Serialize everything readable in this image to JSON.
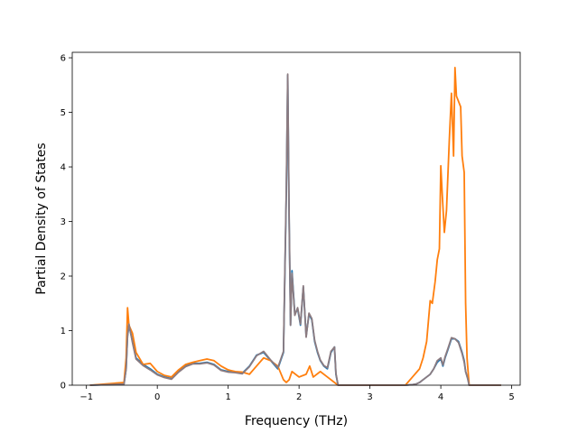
{
  "chart_data": {
    "type": "line",
    "title": "",
    "xlabel": "Frequency (THz)",
    "ylabel": "Partial Density of States",
    "xlim": [
      -1.2,
      5.12
    ],
    "ylim": [
      0,
      6.1
    ],
    "xticks": [
      -1,
      0,
      1,
      2,
      3,
      4,
      5
    ],
    "yticks": [
      0,
      1,
      2,
      3,
      4,
      5,
      6
    ],
    "grid": false,
    "legend": "none",
    "series": [
      {
        "color": "#1f77b4",
        "x": [
          -0.95,
          -0.47,
          -0.44,
          -0.42,
          -0.4,
          -0.35,
          -0.3,
          -0.2,
          -0.1,
          0.0,
          0.1,
          0.2,
          0.3,
          0.4,
          0.5,
          0.6,
          0.7,
          0.8,
          0.9,
          1.0,
          1.1,
          1.2,
          1.3,
          1.4,
          1.5,
          1.6,
          1.7,
          1.78,
          1.82,
          1.84,
          1.86,
          1.88,
          1.9,
          1.94,
          1.98,
          2.02,
          2.06,
          2.1,
          2.14,
          2.18,
          2.22,
          2.26,
          2.3,
          2.35,
          2.4,
          2.45,
          2.5,
          2.52,
          2.55,
          3.0,
          3.5,
          3.6,
          3.65,
          3.7,
          3.75,
          3.8,
          3.85,
          3.9,
          3.95,
          4.0,
          4.03,
          4.06,
          4.1,
          4.15,
          4.2,
          4.25,
          4.3,
          4.33,
          4.35,
          4.38,
          4.4,
          4.85
        ],
        "values": [
          0,
          0.02,
          0.3,
          0.9,
          1.1,
          0.8,
          0.5,
          0.38,
          0.3,
          0.2,
          0.15,
          0.12,
          0.25,
          0.35,
          0.4,
          0.4,
          0.42,
          0.38,
          0.28,
          0.25,
          0.24,
          0.22,
          0.35,
          0.55,
          0.6,
          0.45,
          0.3,
          0.6,
          3.5,
          5.68,
          3.0,
          1.1,
          2.1,
          1.3,
          1.4,
          1.1,
          1.8,
          0.9,
          1.3,
          1.2,
          0.8,
          0.6,
          0.45,
          0.35,
          0.3,
          0.6,
          0.7,
          0.2,
          0,
          0,
          0,
          0.01,
          0.02,
          0.05,
          0.1,
          0.15,
          0.2,
          0.3,
          0.42,
          0.48,
          0.35,
          0.5,
          0.65,
          0.85,
          0.85,
          0.8,
          0.6,
          0.45,
          0.25,
          0.12,
          0,
          0
        ]
      },
      {
        "color": "#ff7f0e",
        "x": [
          -0.95,
          -0.47,
          -0.44,
          -0.42,
          -0.4,
          -0.35,
          -0.3,
          -0.2,
          -0.1,
          0.0,
          0.1,
          0.2,
          0.3,
          0.4,
          0.5,
          0.6,
          0.7,
          0.8,
          0.9,
          1.0,
          1.1,
          1.2,
          1.3,
          1.4,
          1.5,
          1.6,
          1.7,
          1.78,
          1.82,
          1.86,
          1.9,
          2.0,
          2.1,
          2.15,
          2.2,
          2.3,
          2.4,
          2.5,
          2.55,
          3.0,
          3.5,
          3.6,
          3.7,
          3.75,
          3.8,
          3.85,
          3.88,
          3.92,
          3.95,
          3.98,
          4.0,
          4.02,
          4.05,
          4.08,
          4.12,
          4.15,
          4.18,
          4.2,
          4.22,
          4.25,
          4.28,
          4.3,
          4.33,
          4.35,
          4.37,
          4.4,
          4.85
        ],
        "values": [
          0,
          0.05,
          0.5,
          1.42,
          1.1,
          0.95,
          0.6,
          0.38,
          0.4,
          0.25,
          0.18,
          0.15,
          0.28,
          0.38,
          0.42,
          0.45,
          0.48,
          0.45,
          0.35,
          0.28,
          0.25,
          0.24,
          0.2,
          0.35,
          0.5,
          0.45,
          0.35,
          0.1,
          0.05,
          0.1,
          0.25,
          0.15,
          0.2,
          0.35,
          0.15,
          0.25,
          0.15,
          0.05,
          0,
          0,
          0,
          0.15,
          0.3,
          0.5,
          0.8,
          1.55,
          1.5,
          1.9,
          2.3,
          2.5,
          4.02,
          3.5,
          2.8,
          3.2,
          4.5,
          5.35,
          4.2,
          5.82,
          5.3,
          5.2,
          5.1,
          4.2,
          3.9,
          1.5,
          0.5,
          0,
          0
        ]
      },
      {
        "color": "#8c7b80",
        "x": [
          -0.95,
          -0.47,
          -0.44,
          -0.42,
          -0.4,
          -0.35,
          -0.3,
          -0.2,
          -0.1,
          0.0,
          0.1,
          0.2,
          0.3,
          0.4,
          0.5,
          0.6,
          0.7,
          0.8,
          0.9,
          1.0,
          1.1,
          1.2,
          1.3,
          1.4,
          1.5,
          1.6,
          1.7,
          1.78,
          1.82,
          1.84,
          1.86,
          1.88,
          1.9,
          1.94,
          1.98,
          2.02,
          2.06,
          2.1,
          2.14,
          2.18,
          2.22,
          2.26,
          2.3,
          2.35,
          2.4,
          2.45,
          2.5,
          2.52,
          2.55,
          3.0,
          3.5,
          3.6,
          3.65,
          3.7,
          3.75,
          3.8,
          3.85,
          3.9,
          3.95,
          4.0,
          4.03,
          4.06,
          4.1,
          4.15,
          4.2,
          4.25,
          4.3,
          4.33,
          4.35,
          4.38,
          4.4,
          4.85
        ],
        "values": [
          0,
          0.02,
          0.3,
          0.9,
          1.12,
          0.78,
          0.48,
          0.36,
          0.28,
          0.19,
          0.14,
          0.11,
          0.24,
          0.34,
          0.39,
          0.39,
          0.41,
          0.37,
          0.27,
          0.24,
          0.23,
          0.21,
          0.34,
          0.54,
          0.62,
          0.46,
          0.32,
          0.62,
          3.6,
          5.7,
          3.1,
          1.1,
          2.05,
          1.28,
          1.42,
          1.12,
          1.82,
          0.88,
          1.32,
          1.22,
          0.82,
          0.62,
          0.46,
          0.36,
          0.32,
          0.62,
          0.7,
          0.22,
          0,
          0,
          0,
          0.01,
          0.02,
          0.05,
          0.1,
          0.15,
          0.2,
          0.3,
          0.45,
          0.5,
          0.37,
          0.52,
          0.67,
          0.87,
          0.85,
          0.78,
          0.58,
          0.42,
          0.25,
          0.12,
          0,
          0
        ]
      }
    ]
  }
}
